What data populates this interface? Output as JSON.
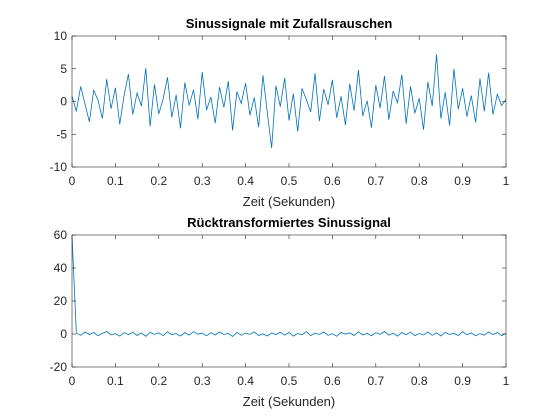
{
  "chart_data": [
    {
      "type": "line",
      "title": "Sinussignale mit Zufallsrauschen",
      "xlabel": "Zeit (Sekunden)",
      "x": [
        0,
        0.01,
        0.02,
        0.03,
        0.04,
        0.05,
        0.06,
        0.07,
        0.08,
        0.09,
        0.1,
        0.11,
        0.12,
        0.13,
        0.14,
        0.15,
        0.16,
        0.17,
        0.18,
        0.19,
        0.2,
        0.21,
        0.22,
        0.23,
        0.24,
        0.25,
        0.26,
        0.27,
        0.28,
        0.29,
        0.3,
        0.31,
        0.32,
        0.33,
        0.34,
        0.35,
        0.36,
        0.37,
        0.38,
        0.39,
        0.4,
        0.41,
        0.42,
        0.43,
        0.44,
        0.45,
        0.46,
        0.47,
        0.48,
        0.49,
        0.5,
        0.51,
        0.52,
        0.53,
        0.54,
        0.55,
        0.56,
        0.57,
        0.58,
        0.59,
        0.6,
        0.61,
        0.62,
        0.63,
        0.64,
        0.65,
        0.66,
        0.67,
        0.68,
        0.69,
        0.7,
        0.71,
        0.72,
        0.73,
        0.74,
        0.75,
        0.76,
        0.77,
        0.78,
        0.79,
        0.8,
        0.81,
        0.82,
        0.83,
        0.84,
        0.85,
        0.86,
        0.87,
        0.88,
        0.89,
        0.9,
        0.91,
        0.92,
        0.93,
        0.94,
        0.95,
        0.96,
        0.97,
        0.98,
        0.99,
        1
      ],
      "series": [
        {
          "color": "#0072bd",
          "values": [
            0.8,
            -1.5,
            2.3,
            -0.4,
            -3.1,
            1.7,
            0.2,
            -2.6,
            3.4,
            -1.1,
            2.1,
            -3.5,
            0.9,
            4.2,
            -2.0,
            1.3,
            -0.7,
            5.1,
            -3.8,
            2.6,
            -1.9,
            0.4,
            3.7,
            -2.4,
            1.0,
            -4.1,
            2.9,
            -0.6,
            1.8,
            -2.7,
            4.5,
            -1.3,
            0.7,
            -3.3,
            2.2,
            -0.9,
            3.1,
            -4.4,
            1.5,
            -0.3,
            2.8,
            -2.1,
            0.6,
            -3.9,
            4.0,
            -1.7,
            -7.1,
            2.4,
            -0.8,
            3.6,
            -2.9,
            1.2,
            -4.6,
            2.0,
            0.3,
            -1.6,
            4.3,
            -3.0,
            1.9,
            -0.5,
            3.3,
            -2.5,
            0.8,
            -3.6,
            2.7,
            -1.4,
            4.8,
            -2.2,
            0.1,
            -4.0,
            2.5,
            -1.0,
            3.9,
            -2.8,
            1.6,
            -0.2,
            4.1,
            -3.4,
            2.3,
            -1.8,
            0.5,
            -4.3,
            3.0,
            -0.7,
            7.2,
            -2.6,
            1.4,
            -3.7,
            5.0,
            -1.2,
            2.0,
            -2.3,
            0.9,
            -3.2,
            3.5,
            -1.5,
            4.4,
            -2.0,
            1.1,
            -0.6,
            0.3
          ]
        }
      ],
      "xlim": [
        0,
        1
      ],
      "ylim": [
        -10,
        10
      ],
      "xticks": [
        0,
        0.1,
        0.2,
        0.3,
        0.4,
        0.5,
        0.6,
        0.7,
        0.8,
        0.9,
        1
      ],
      "yticks": [
        -10,
        -5,
        0,
        5,
        10
      ]
    },
    {
      "type": "line",
      "title": "Rücktransformiertes Sinussignal",
      "xlabel": "Zeit (Sekunden)",
      "x": [
        0,
        0.01,
        0.02,
        0.03,
        0.04,
        0.05,
        0.06,
        0.07,
        0.08,
        0.09,
        0.1,
        0.11,
        0.12,
        0.13,
        0.14,
        0.15,
        0.16,
        0.17,
        0.18,
        0.19,
        0.2,
        0.21,
        0.22,
        0.23,
        0.24,
        0.25,
        0.26,
        0.27,
        0.28,
        0.29,
        0.3,
        0.31,
        0.32,
        0.33,
        0.34,
        0.35,
        0.36,
        0.37,
        0.38,
        0.39,
        0.4,
        0.41,
        0.42,
        0.43,
        0.44,
        0.45,
        0.46,
        0.47,
        0.48,
        0.49,
        0.5,
        0.51,
        0.52,
        0.53,
        0.54,
        0.55,
        0.56,
        0.57,
        0.58,
        0.59,
        0.6,
        0.61,
        0.62,
        0.63,
        0.64,
        0.65,
        0.66,
        0.67,
        0.68,
        0.69,
        0.7,
        0.71,
        0.72,
        0.73,
        0.74,
        0.75,
        0.76,
        0.77,
        0.78,
        0.79,
        0.8,
        0.81,
        0.82,
        0.83,
        0.84,
        0.85,
        0.86,
        0.87,
        0.88,
        0.89,
        0.9,
        0.91,
        0.92,
        0.93,
        0.94,
        0.95,
        0.96,
        0.97,
        0.98,
        0.99,
        1
      ],
      "series": [
        {
          "color": "#0072bd",
          "values": [
            60,
            0.5,
            -0.8,
            1.2,
            -0.3,
            0.9,
            -1.1,
            0.4,
            1.5,
            -0.6,
            0.2,
            -1.3,
            0.8,
            -0.4,
            1.1,
            -0.9,
            0.6,
            -1.4,
            1.0,
            -0.2,
            0.7,
            -1.0,
            1.3,
            -0.5,
            0.3,
            -1.2,
            0.9,
            -0.7,
            1.4,
            -0.1,
            0.5,
            -1.1,
            0.8,
            -0.6,
            1.2,
            -0.3,
            0.4,
            -1.5,
            1.0,
            -0.8,
            0.6,
            -0.2,
            1.3,
            -0.9,
            0.1,
            -1.2,
            0.7,
            -0.4,
            1.1,
            -0.7,
            0.9,
            -1.3,
            0.3,
            -0.5,
            1.4,
            -1.0,
            0.6,
            -0.3,
            1.2,
            -0.8,
            0.2,
            -1.4,
            1.0,
            -0.1,
            0.7,
            -0.9,
            1.3,
            -0.6,
            0.4,
            -1.1,
            0.8,
            -0.2,
            1.5,
            -0.7,
            0.5,
            -1.3,
            0.9,
            -0.4,
            1.1,
            -1.0,
            0.3,
            -0.6,
            1.2,
            -0.8,
            0.7,
            -1.2,
            1.0,
            -0.3,
            0.4,
            -0.9,
            1.4,
            -0.5,
            0.6,
            -1.1,
            0.2,
            -0.7,
            1.3,
            -0.4,
            0.9,
            -1.0,
            0.5
          ]
        }
      ],
      "xlim": [
        0,
        1
      ],
      "ylim": [
        -20,
        60
      ],
      "xticks": [
        0,
        0.1,
        0.2,
        0.3,
        0.4,
        0.5,
        0.6,
        0.7,
        0.8,
        0.9,
        1
      ],
      "yticks": [
        -20,
        0,
        20,
        40,
        60
      ]
    }
  ]
}
